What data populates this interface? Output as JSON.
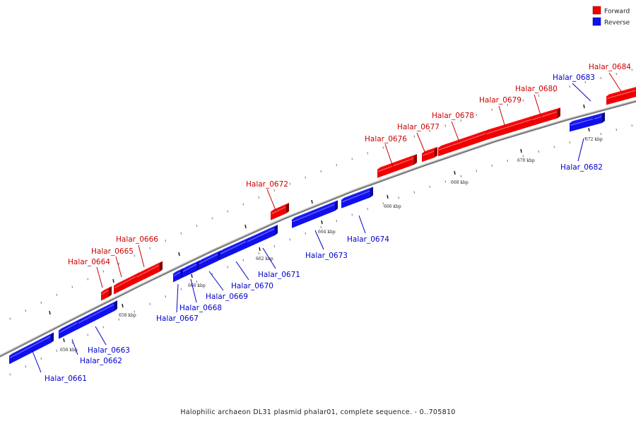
{
  "caption": "Halophilic archaeon DL31 plasmid phalar01, complete sequence. - 0..705810",
  "legend": {
    "forward": "Forward",
    "reverse": "Reverse"
  },
  "colors": {
    "forward": "#ee0000",
    "reverse": "#1010ee",
    "backbone": "#888888"
  },
  "ticks": [
    "656 kbp",
    "658 kbp",
    "660 kbp",
    "662 kbp",
    "664 kbp",
    "666 kbp",
    "668 kbp",
    "670 kbp",
    "672 kbp"
  ],
  "genes": [
    {
      "name": "Halar_0661",
      "strand": "reverse"
    },
    {
      "name": "Halar_0662",
      "strand": "reverse"
    },
    {
      "name": "Halar_0663",
      "strand": "reverse"
    },
    {
      "name": "Halar_0664",
      "strand": "forward"
    },
    {
      "name": "Halar_0665",
      "strand": "forward"
    },
    {
      "name": "Halar_0666",
      "strand": "forward"
    },
    {
      "name": "Halar_0667",
      "strand": "reverse"
    },
    {
      "name": "Halar_0668",
      "strand": "reverse"
    },
    {
      "name": "Halar_0669",
      "strand": "reverse"
    },
    {
      "name": "Halar_0670",
      "strand": "reverse"
    },
    {
      "name": "Halar_0671",
      "strand": "reverse"
    },
    {
      "name": "Halar_0672",
      "strand": "forward"
    },
    {
      "name": "Halar_0673",
      "strand": "reverse"
    },
    {
      "name": "Halar_0674",
      "strand": "reverse"
    },
    {
      "name": "Halar_0676",
      "strand": "forward"
    },
    {
      "name": "Halar_0677",
      "strand": "forward"
    },
    {
      "name": "Halar_0678",
      "strand": "forward"
    },
    {
      "name": "Halar_0679",
      "strand": "forward"
    },
    {
      "name": "Halar_0680",
      "strand": "forward"
    },
    {
      "name": "Halar_0682",
      "strand": "reverse"
    },
    {
      "name": "Halar_0683",
      "strand": "reverse"
    },
    {
      "name": "Halar_0684",
      "strand": "forward"
    }
  ]
}
